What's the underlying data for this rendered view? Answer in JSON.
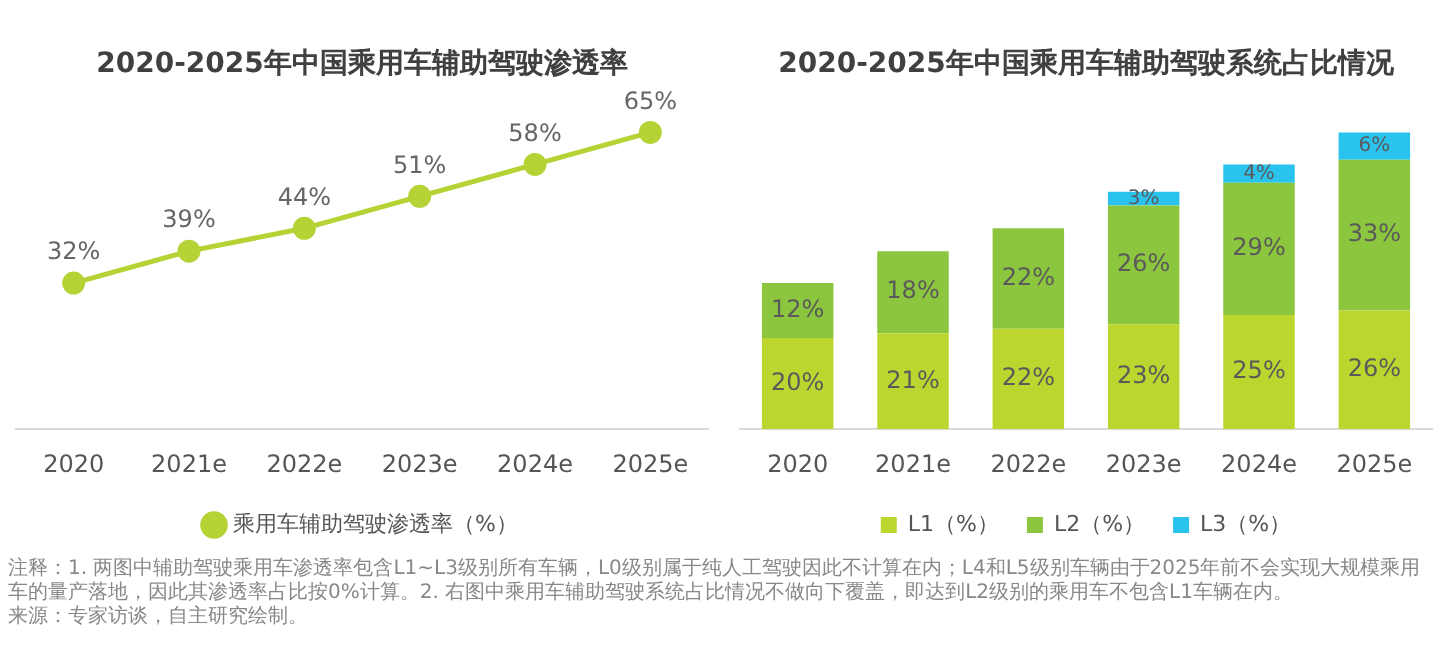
{
  "chart_data": [
    {
      "type": "line",
      "title": "2020-2025年中国乘用车辅助驾驶渗透率",
      "categories": [
        "2020",
        "2021e",
        "2022e",
        "2023e",
        "2024e",
        "2025e"
      ],
      "series": [
        {
          "name": "乘用车辅助驾驶渗透率（%）",
          "color": "#b5d334",
          "values": [
            32,
            39,
            44,
            51,
            58,
            65
          ],
          "value_labels": [
            "32%",
            "39%",
            "44%",
            "51%",
            "58%",
            "65%"
          ]
        }
      ],
      "marker": "circle",
      "grid": false,
      "legend": "bottom",
      "tick_labels": "x",
      "annotations": [
        "注释：1. 两图中辅助驾驶乘用车渗透率包含L1~L3级别所有车辆，L0级别属于纯人工驾驶因此不计算在内；L4和L5级别车辆由于2025年前不会实现大规模乘用车的量产落地，因此其渗透率占比按0%计算。2. 右图中乘用车辅助驾驶系统占比情况不做向下覆盖，即达到L2级别的乘用车不包含L1车辆在内。",
        "来源：专家访谈，自主研究绘制。"
      ]
    },
    {
      "type": "bar",
      "stacked": true,
      "title": "2020-2025年中国乘用车辅助驾驶系统占比情况",
      "categories": [
        "2020",
        "2021e",
        "2022e",
        "2023e",
        "2024e",
        "2025e"
      ],
      "series": [
        {
          "name": "L1（%）",
          "color": "#bcd62f",
          "values": [
            20,
            21,
            22,
            23,
            25,
            26
          ],
          "value_labels": [
            "20%",
            "21%",
            "22%",
            "23%",
            "25%",
            "26%"
          ]
        },
        {
          "name": "L2（%）",
          "color": "#8cc63e",
          "values": [
            12,
            18,
            22,
            26,
            29,
            33
          ],
          "value_labels": [
            "12%",
            "18%",
            "22%",
            "26%",
            "29%",
            "33%"
          ]
        },
        {
          "name": "L3（%）",
          "color": "#2ac3ee",
          "values": [
            null,
            null,
            null,
            3,
            4,
            6
          ],
          "value_labels": [
            null,
            null,
            null,
            "3%",
            "4%",
            "6%"
          ]
        }
      ],
      "grid": false,
      "legend": "bottom",
      "tick_labels": "x"
    }
  ]
}
